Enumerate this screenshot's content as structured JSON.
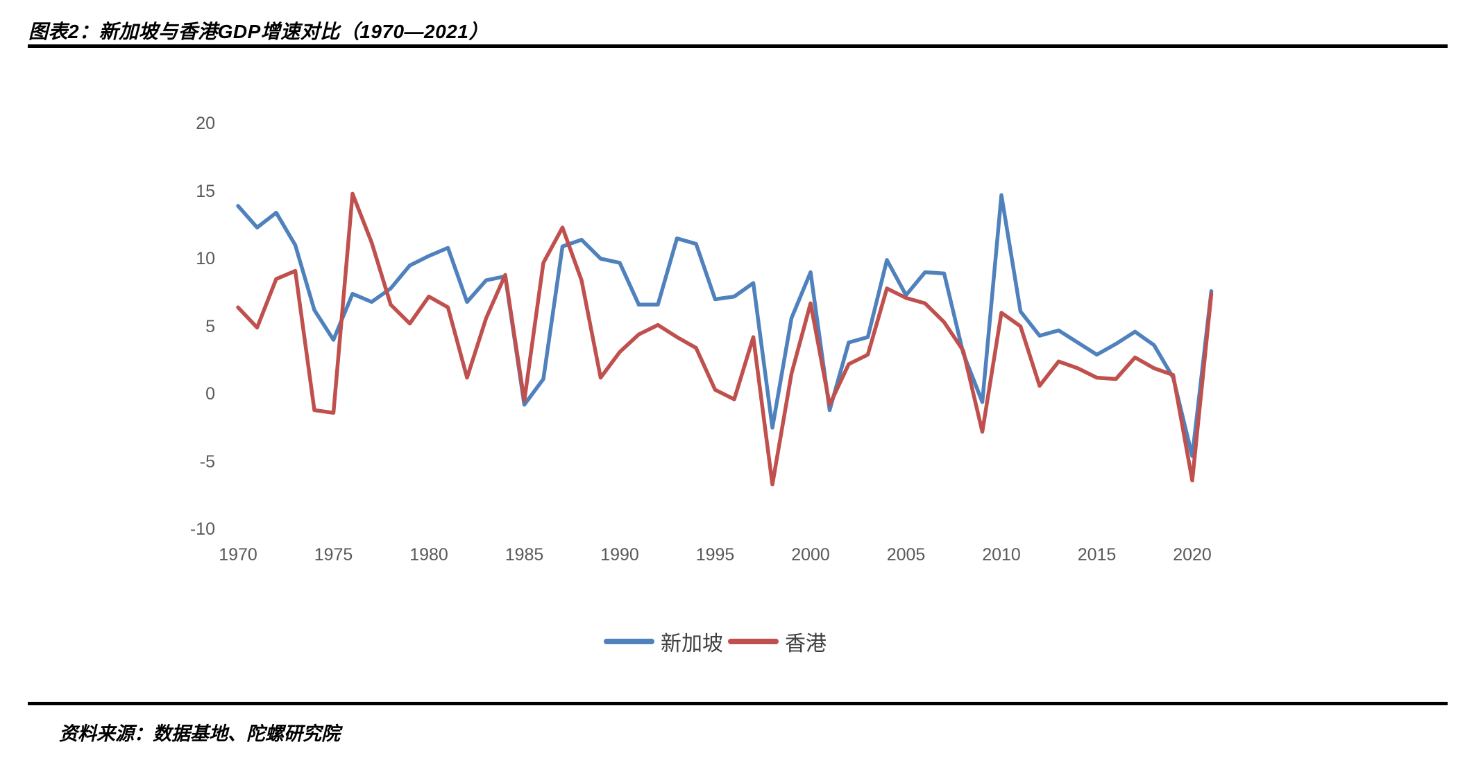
{
  "page": {
    "title": "图表2：新加坡与香港GDP增速对比（1970—2021）",
    "source": "资料来源：数据基地、陀螺研究院"
  },
  "colors": {
    "singapore_line": "#4F81BD",
    "hongkong_line": "#C0504D",
    "tick_text": "#595959",
    "legend_text": "#404040",
    "rule": "#000000",
    "background": "#FFFFFF"
  },
  "chart_data": {
    "type": "line",
    "title": "新加坡与香港GDP增速对比（1970—2021）",
    "xlabel": "",
    "ylabel": "",
    "grid": false,
    "legend_position": "bottom",
    "xlim": [
      1970,
      2021
    ],
    "ylim": [
      -10,
      20
    ],
    "xticks": [
      1970,
      1975,
      1980,
      1985,
      1990,
      1995,
      2000,
      2005,
      2010,
      2015,
      2020
    ],
    "yticks": [
      20,
      15,
      10,
      5,
      0,
      -5,
      -10
    ],
    "x": [
      1970,
      1971,
      1972,
      1973,
      1974,
      1975,
      1976,
      1977,
      1978,
      1979,
      1980,
      1981,
      1982,
      1983,
      1984,
      1985,
      1986,
      1987,
      1988,
      1989,
      1990,
      1991,
      1992,
      1993,
      1994,
      1995,
      1996,
      1997,
      1998,
      1999,
      2000,
      2001,
      2002,
      2003,
      2004,
      2005,
      2006,
      2007,
      2008,
      2009,
      2010,
      2011,
      2012,
      2013,
      2014,
      2015,
      2016,
      2017,
      2018,
      2019,
      2020,
      2021
    ],
    "series": [
      {
        "name": "新加坡",
        "color": "#4F81BD",
        "values": [
          13.9,
          12.3,
          13.4,
          11.0,
          6.2,
          4.0,
          7.4,
          6.8,
          7.8,
          9.5,
          10.2,
          10.8,
          6.8,
          8.4,
          8.7,
          -0.8,
          1.1,
          10.9,
          11.4,
          10.0,
          9.7,
          6.6,
          6.6,
          11.5,
          11.1,
          7.0,
          7.2,
          8.2,
          -2.5,
          5.6,
          9.0,
          -1.2,
          3.8,
          4.2,
          9.9,
          7.3,
          9.0,
          8.9,
          3.0,
          -0.6,
          14.7,
          6.1,
          4.3,
          4.7,
          3.8,
          2.9,
          3.7,
          4.6,
          3.6,
          1.2,
          -4.6,
          7.6
        ]
      },
      {
        "name": "香港",
        "color": "#C0504D",
        "values": [
          6.4,
          4.9,
          8.5,
          9.1,
          -1.2,
          -1.4,
          14.8,
          11.2,
          6.6,
          5.2,
          7.2,
          6.4,
          1.2,
          5.6,
          8.8,
          -0.5,
          9.7,
          12.3,
          8.4,
          1.2,
          3.1,
          4.4,
          5.1,
          4.2,
          3.4,
          0.3,
          -0.4,
          4.2,
          -6.7,
          1.5,
          6.7,
          -0.8,
          2.2,
          2.9,
          7.8,
          7.1,
          6.7,
          5.3,
          3.2,
          -2.8,
          6.0,
          5.0,
          0.6,
          2.4,
          1.9,
          1.2,
          1.1,
          2.7,
          1.9,
          1.4,
          -6.4,
          7.4
        ]
      }
    ]
  }
}
